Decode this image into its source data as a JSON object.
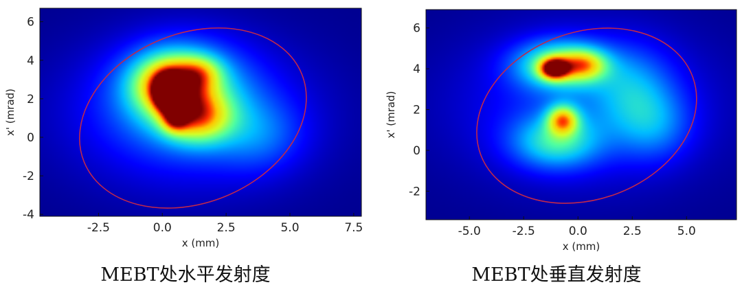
{
  "chart_data": [
    {
      "type": "heatmap",
      "title": "MEBT处水平发射度",
      "xlabel": "x (mm)",
      "ylabel": "x' (mrad)",
      "xlim": [
        -4.8,
        7.8
      ],
      "ylim": [
        -4.1,
        6.7
      ],
      "x_ticks": [
        -2.5,
        0.0,
        2.5,
        5.0,
        7.5
      ],
      "y_ticks": [
        -4,
        -2,
        0,
        2,
        4,
        6
      ],
      "x_tick_labels": [
        "-2.5",
        "0.0",
        "2.5",
        "5.0",
        "7.5"
      ],
      "y_tick_labels": [
        "-4",
        "-2",
        "0",
        "2",
        "4",
        "6"
      ],
      "colors": {
        "background": "#00008f",
        "ellipse": "#c0284c"
      },
      "ellipse": {
        "cx": 1.2,
        "cy": 1.0,
        "rx": 4.6,
        "ry": 4.4,
        "angle_deg": -22
      },
      "blobs": [
        {
          "x": 1.0,
          "y": 1.2,
          "sx": 3.2,
          "sy": 2.6,
          "w": 0.22
        },
        {
          "x": 0.8,
          "y": 2.5,
          "sx": 1.6,
          "sy": 1.6,
          "w": 0.38
        },
        {
          "x": 0.3,
          "y": 2.8,
          "sx": 0.95,
          "sy": 1.0,
          "w": 0.55
        },
        {
          "x": 1.4,
          "y": 1.0,
          "sx": 0.9,
          "sy": 0.9,
          "w": 0.45
        },
        {
          "x": 0.2,
          "y": 2.3,
          "sx": 0.35,
          "sy": 0.6,
          "w": 0.75
        },
        {
          "x": 0.5,
          "y": 0.9,
          "sx": 0.35,
          "sy": 0.45,
          "w": 0.35
        },
        {
          "x": 1.5,
          "y": 3.4,
          "sx": 0.6,
          "sy": 0.6,
          "w": 0.25
        },
        {
          "x": 3.8,
          "y": 0.1,
          "sx": 1.2,
          "sy": 1.3,
          "w": 0.15
        }
      ]
    },
    {
      "type": "heatmap",
      "title": "MEBT处垂直发射度",
      "xlabel": "x (mm)",
      "ylabel": "x' (mrad)",
      "xlim": [
        -7.0,
        7.3
      ],
      "ylim": [
        -3.4,
        6.9
      ],
      "x_ticks": [
        -5.0,
        -2.5,
        0.0,
        2.5,
        5.0
      ],
      "y_ticks": [
        -2,
        0,
        2,
        4,
        6
      ],
      "x_tick_labels": [
        "-5.0",
        "-2.5",
        "0.0",
        "2.5",
        "5.0"
      ],
      "y_tick_labels": [
        "-2",
        "0",
        "2",
        "4",
        "6"
      ],
      "colors": {
        "background": "#00008f",
        "ellipse": "#c0284c"
      },
      "ellipse": {
        "cx": 0.4,
        "cy": 1.7,
        "rx": 5.2,
        "ry": 4.1,
        "angle_deg": -20
      },
      "blobs": [
        {
          "x": 0.2,
          "y": 2.2,
          "sx": 4.0,
          "sy": 2.6,
          "w": 0.18
        },
        {
          "x": -0.8,
          "y": 4.2,
          "sx": 1.4,
          "sy": 0.8,
          "w": 0.5
        },
        {
          "x": -1.1,
          "y": 4.0,
          "sx": 0.45,
          "sy": 0.35,
          "w": 0.7
        },
        {
          "x": 0.3,
          "y": 4.2,
          "sx": 0.7,
          "sy": 0.5,
          "w": 0.35
        },
        {
          "x": -0.7,
          "y": 1.5,
          "sx": 0.5,
          "sy": 0.5,
          "w": 0.55
        },
        {
          "x": -1.0,
          "y": 0.4,
          "sx": 1.4,
          "sy": 0.9,
          "w": 0.35
        },
        {
          "x": 2.5,
          "y": 3.0,
          "sx": 1.3,
          "sy": 1.4,
          "w": 0.2
        },
        {
          "x": 3.5,
          "y": 1.2,
          "sx": 1.2,
          "sy": 1.2,
          "w": 0.18
        }
      ]
    }
  ]
}
